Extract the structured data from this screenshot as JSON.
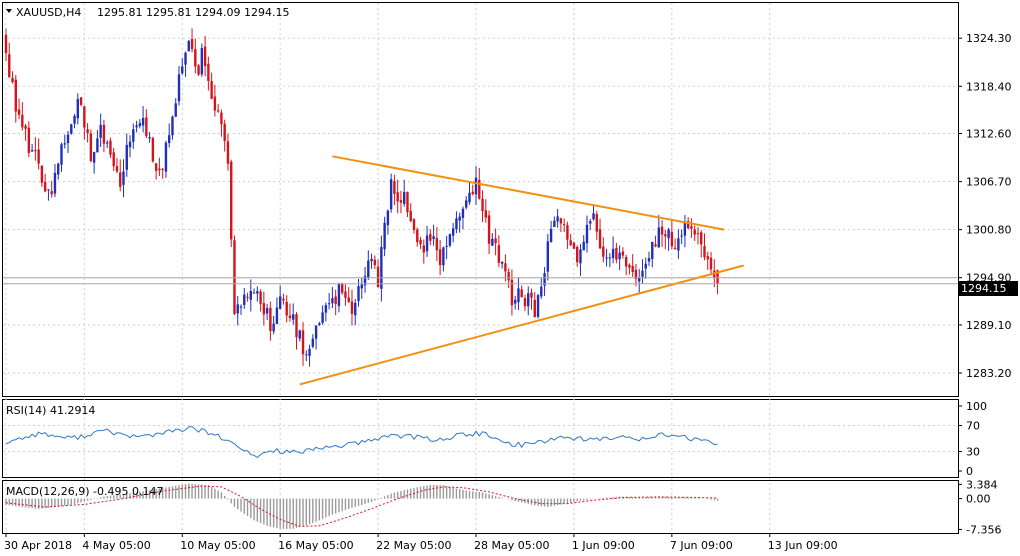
{
  "header": {
    "symbol": "XAUUSD,H4",
    "ohlc": "1295.81 1295.81 1294.09 1294.15"
  },
  "colors": {
    "up": "#1f2fb8",
    "down": "#d4141c",
    "trendline": "#f29111",
    "rsi": "#2f77c4",
    "macd_hist": "#9a9a9a",
    "macd_signal": "#d4141c",
    "grid": "#c8d0d8"
  },
  "chart_data": [
    {
      "type": "candlestick",
      "ylim": [
        1280.5,
        1328.5
      ],
      "y_ticks": [
        "1324.30",
        "1318.40",
        "1312.60",
        "1306.70",
        "1300.80",
        "1294.90",
        "1289.10",
        "1283.20"
      ],
      "current_price": "1294.15",
      "x_ticks": [
        "30 Apr 2018",
        "4 May 05:00",
        "10 May 05:00",
        "16 May 05:00",
        "22 May 05:00",
        "28 May 05:00",
        "1 Jun 09:00",
        "7 Jun 09:00",
        "13 Jun 09:00"
      ],
      "x_tick_bars": [
        0,
        24,
        54,
        84,
        114,
        144,
        174,
        204,
        234
      ],
      "bar_count": 235,
      "path_anchors": [
        [
          0,
          1323
        ],
        [
          3,
          1316
        ],
        [
          6,
          1312
        ],
        [
          10,
          1309
        ],
        [
          12,
          1306
        ],
        [
          14,
          1305
        ],
        [
          16,
          1310
        ],
        [
          18,
          1312
        ],
        [
          22,
          1317
        ],
        [
          24,
          1313
        ],
        [
          26,
          1310
        ],
        [
          29,
          1314
        ],
        [
          32,
          1309
        ],
        [
          35,
          1307
        ],
        [
          38,
          1312
        ],
        [
          40,
          1314
        ],
        [
          42,
          1315
        ],
        [
          45,
          1310
        ],
        [
          47,
          1307
        ],
        [
          50,
          1313
        ],
        [
          52,
          1317
        ],
        [
          54,
          1321
        ],
        [
          56,
          1324
        ],
        [
          58,
          1320
        ],
        [
          60,
          1322
        ],
        [
          62,
          1319
        ],
        [
          64,
          1316
        ],
        [
          66,
          1313
        ],
        [
          68,
          1310
        ],
        [
          69,
          1300
        ],
        [
          70,
          1290
        ],
        [
          72,
          1292
        ],
        [
          75,
          1294
        ],
        [
          78,
          1292
        ],
        [
          81,
          1289
        ],
        [
          84,
          1292
        ],
        [
          87,
          1290
        ],
        [
          90,
          1288
        ],
        [
          92,
          1285
        ],
        [
          94,
          1287
        ],
        [
          97,
          1291
        ],
        [
          100,
          1292
        ],
        [
          103,
          1294
        ],
        [
          106,
          1291
        ],
        [
          109,
          1294
        ],
        [
          112,
          1297
        ],
        [
          114,
          1294
        ],
        [
          116,
          1302
        ],
        [
          118,
          1306
        ],
        [
          121,
          1305
        ],
        [
          124,
          1303
        ],
        [
          127,
          1298
        ],
        [
          130,
          1300
        ],
        [
          133,
          1297
        ],
        [
          135,
          1300
        ],
        [
          138,
          1301
        ],
        [
          140,
          1303
        ],
        [
          142,
          1305
        ],
        [
          144,
          1306
        ],
        [
          146,
          1304
        ],
        [
          148,
          1299
        ],
        [
          150,
          1298
        ],
        [
          153,
          1295
        ],
        [
          155,
          1292
        ],
        [
          158,
          1293
        ],
        [
          160,
          1292
        ],
        [
          162,
          1291
        ],
        [
          164,
          1294
        ],
        [
          166,
          1299
        ],
        [
          169,
          1302
        ],
        [
          172,
          1300
        ],
        [
          175,
          1298
        ],
        [
          178,
          1301
        ],
        [
          180,
          1302
        ],
        [
          182,
          1299
        ],
        [
          185,
          1297
        ],
        [
          188,
          1298
        ],
        [
          191,
          1296
        ],
        [
          194,
          1295
        ],
        [
          197,
          1297
        ],
        [
          200,
          1301
        ],
        [
          203,
          1300
        ],
        [
          205,
          1298
        ],
        [
          208,
          1302
        ],
        [
          211,
          1301
        ],
        [
          213,
          1298
        ],
        [
          215,
          1296
        ],
        [
          217,
          1295
        ],
        [
          218,
          1294.15
        ]
      ],
      "trendlines": [
        {
          "from": [
            100,
            1309.8
          ],
          "to": [
            220,
            1300.8
          ]
        },
        {
          "from": [
            90,
            1281.8
          ],
          "to": [
            226,
            1296.4
          ]
        }
      ],
      "price_lines": [
        1294.9,
        1294.15
      ]
    },
    {
      "type": "line",
      "title": "RSI(14) 41.2914",
      "y_ticks": [
        "100",
        "70",
        "30",
        "0"
      ],
      "ylim": [
        0,
        100
      ],
      "path_anchors": [
        [
          0,
          44
        ],
        [
          10,
          58
        ],
        [
          20,
          50
        ],
        [
          30,
          62
        ],
        [
          40,
          52
        ],
        [
          50,
          60
        ],
        [
          56,
          66
        ],
        [
          63,
          58
        ],
        [
          70,
          40
        ],
        [
          76,
          22
        ],
        [
          82,
          32
        ],
        [
          90,
          28
        ],
        [
          100,
          38
        ],
        [
          110,
          44
        ],
        [
          118,
          56
        ],
        [
          125,
          52
        ],
        [
          133,
          48
        ],
        [
          140,
          56
        ],
        [
          146,
          58
        ],
        [
          152,
          44
        ],
        [
          158,
          40
        ],
        [
          164,
          46
        ],
        [
          170,
          52
        ],
        [
          176,
          50
        ],
        [
          182,
          48
        ],
        [
          188,
          52
        ],
        [
          194,
          50
        ],
        [
          200,
          56
        ],
        [
          206,
          54
        ],
        [
          212,
          46
        ],
        [
          218,
          41.2914
        ]
      ]
    },
    {
      "type": "bar+line",
      "title": "MACD(12,26,9) -0.495 0.147",
      "y_ticks": [
        "3.384",
        "0.00",
        "-7.356"
      ],
      "ylim": [
        -8.2,
        4.2
      ],
      "macd_anchors": [
        [
          0,
          -1.5
        ],
        [
          10,
          -2.5
        ],
        [
          20,
          -1.5
        ],
        [
          30,
          0.5
        ],
        [
          40,
          1.5
        ],
        [
          50,
          2.8
        ],
        [
          56,
          3.6
        ],
        [
          62,
          3.2
        ],
        [
          66,
          1.5
        ],
        [
          70,
          -2.0
        ],
        [
          76,
          -5.2
        ],
        [
          80,
          -6.5
        ],
        [
          84,
          -7.2
        ],
        [
          88,
          -7.2
        ],
        [
          92,
          -6.4
        ],
        [
          96,
          -5.2
        ],
        [
          100,
          -3.8
        ],
        [
          106,
          -2.2
        ],
        [
          112,
          -0.8
        ],
        [
          118,
          1.2
        ],
        [
          124,
          2.4
        ],
        [
          130,
          3.3
        ],
        [
          134,
          3.2
        ],
        [
          138,
          2.4
        ],
        [
          142,
          1.8
        ],
        [
          146,
          1.5
        ],
        [
          150,
          0.6
        ],
        [
          156,
          -0.6
        ],
        [
          162,
          -1.6
        ],
        [
          166,
          -2.0
        ],
        [
          170,
          -1.4
        ],
        [
          176,
          -0.5
        ],
        [
          182,
          0.1
        ],
        [
          188,
          0.5
        ],
        [
          194,
          0.3
        ],
        [
          200,
          0.5
        ],
        [
          206,
          0.4
        ],
        [
          212,
          0.2
        ],
        [
          218,
          -0.495
        ]
      ],
      "signal_anchors": [
        [
          0,
          -1.0
        ],
        [
          12,
          -2.0
        ],
        [
          24,
          -1.4
        ],
        [
          36,
          0.0
        ],
        [
          48,
          1.8
        ],
        [
          60,
          3.0
        ],
        [
          66,
          2.8
        ],
        [
          72,
          0.5
        ],
        [
          78,
          -2.5
        ],
        [
          84,
          -5.0
        ],
        [
          90,
          -6.6
        ],
        [
          96,
          -6.5
        ],
        [
          104,
          -4.6
        ],
        [
          112,
          -2.4
        ],
        [
          120,
          0.0
        ],
        [
          128,
          2.0
        ],
        [
          134,
          2.8
        ],
        [
          140,
          2.6
        ],
        [
          148,
          1.6
        ],
        [
          156,
          0.0
        ],
        [
          164,
          -1.2
        ],
        [
          172,
          -1.2
        ],
        [
          180,
          -0.4
        ],
        [
          190,
          0.3
        ],
        [
          200,
          0.4
        ],
        [
          210,
          0.3
        ],
        [
          218,
          0.147
        ]
      ]
    }
  ]
}
